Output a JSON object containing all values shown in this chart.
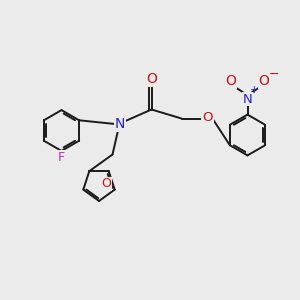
{
  "bg_color": "#ebebeb",
  "bond_color": "#1a1a1a",
  "N_color": "#2222cc",
  "O_color": "#cc1111",
  "F_color": "#bb33bb",
  "bond_lw": 1.4,
  "ring_r": 0.68,
  "furan_r": 0.55,
  "xlim": [
    0,
    10
  ],
  "ylim": [
    1,
    9
  ]
}
